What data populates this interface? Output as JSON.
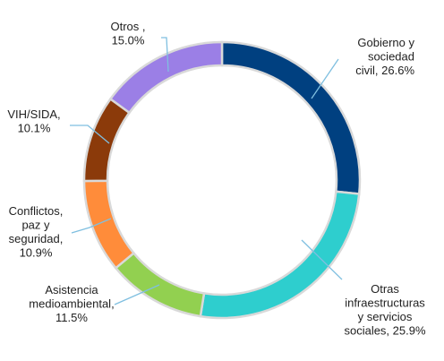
{
  "chart_data": {
    "type": "pie",
    "variant": "donut",
    "title": "",
    "slices": [
      {
        "key": "gobierno",
        "lines": [
          "Gobierno y",
          "sociedad",
          "civil, 26.6%"
        ],
        "value": 26.6,
        "color": "#004080"
      },
      {
        "key": "infraestructuras",
        "lines": [
          "Otras",
          "infraestructuras",
          "y servicios",
          "sociales, 25.9%"
        ],
        "value": 25.9,
        "color": "#2ecece"
      },
      {
        "key": "medioambiental",
        "lines": [
          "Asistencia",
          "medioambiental,",
          "11.5%"
        ],
        "value": 11.5,
        "color": "#92d050"
      },
      {
        "key": "conflictos",
        "lines": [
          "Conflictos,",
          "paz y",
          "seguridad,",
          "10.9%"
        ],
        "value": 10.9,
        "color": "#ff8c3a"
      },
      {
        "key": "vih",
        "lines": [
          "VIH/SIDA,",
          "10.1%"
        ],
        "value": 10.1,
        "color": "#8b3a0a"
      },
      {
        "key": "otros",
        "lines": [
          "Otros ,",
          "15.0%"
        ],
        "value": 15.0,
        "color": "#9b7fe6"
      }
    ],
    "start_angle_deg": 0,
    "direction": "clockwise",
    "leader_line_color": "#7fbfe0",
    "slice_border_color": "#d9d9d9"
  }
}
